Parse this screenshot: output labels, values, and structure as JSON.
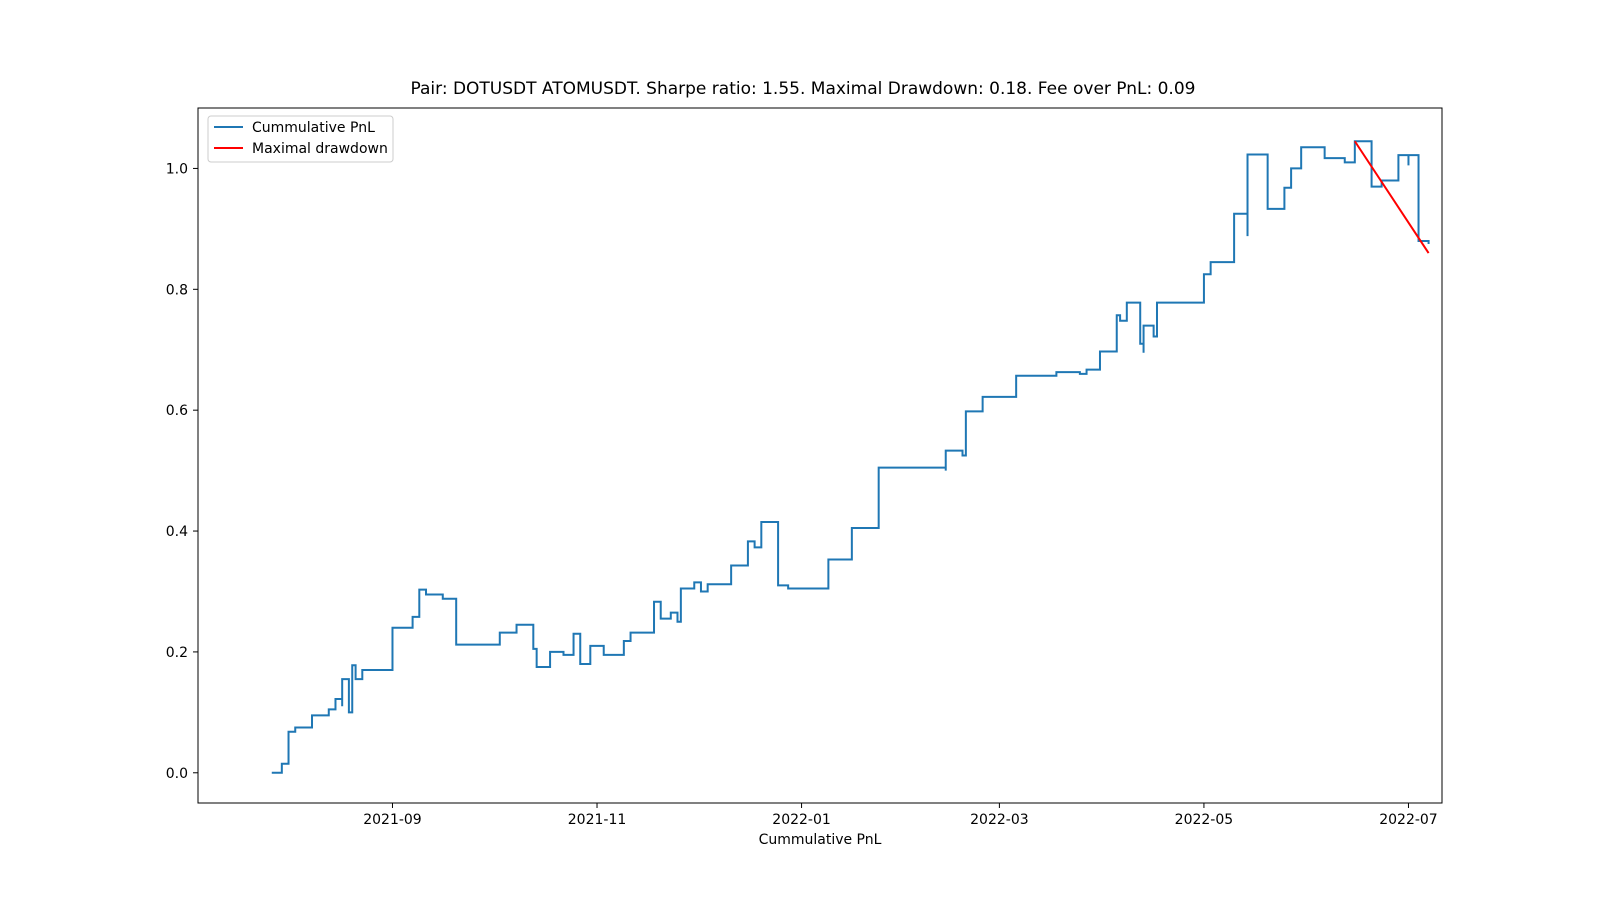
{
  "chart_data": {
    "type": "line",
    "title": "Pair: DOTUSDT ATOMUSDT. Sharpe ratio: 1.55. Maximal Drawdown: 0.18. Fee over PnL: 0.09",
    "xlabel": "Cummulative PnL",
    "ylabel": "",
    "xlim": [
      "2021-07-05",
      "2022-07-11"
    ],
    "ylim": [
      -0.05,
      1.1
    ],
    "x_ticks": [
      "2021-09",
      "2021-11",
      "2022-01",
      "2022-03",
      "2022-05",
      "2022-07"
    ],
    "y_ticks": [
      "0.0",
      "0.2",
      "0.4",
      "0.6",
      "0.8",
      "1.0"
    ],
    "grid": false,
    "legend_position": "top-left",
    "series": [
      {
        "name": "Cummulative PnL",
        "color": "#1f77b4",
        "step": true,
        "points": [
          [
            "2021-07-27",
            0.0
          ],
          [
            "2021-07-30",
            0.015
          ],
          [
            "2021-08-01",
            0.045
          ],
          [
            "2021-08-01",
            0.068
          ],
          [
            "2021-08-03",
            0.075
          ],
          [
            "2021-08-08",
            0.095
          ],
          [
            "2021-08-13",
            0.105
          ],
          [
            "2021-08-15",
            0.122
          ],
          [
            "2021-08-17",
            0.11
          ],
          [
            "2021-08-17",
            0.155
          ],
          [
            "2021-08-19",
            0.1
          ],
          [
            "2021-08-20",
            0.178
          ],
          [
            "2021-08-21",
            0.155
          ],
          [
            "2021-08-23",
            0.17
          ],
          [
            "2021-09-01",
            0.24
          ],
          [
            "2021-09-07",
            0.258
          ],
          [
            "2021-09-09",
            0.303
          ],
          [
            "2021-09-11",
            0.295
          ],
          [
            "2021-09-16",
            0.288
          ],
          [
            "2021-09-20",
            0.212
          ],
          [
            "2021-10-03",
            0.232
          ],
          [
            "2021-10-08",
            0.245
          ],
          [
            "2021-10-13",
            0.205
          ],
          [
            "2021-10-14",
            0.175
          ],
          [
            "2021-10-18",
            0.2
          ],
          [
            "2021-10-22",
            0.195
          ],
          [
            "2021-10-25",
            0.23
          ],
          [
            "2021-10-27",
            0.18
          ],
          [
            "2021-10-30",
            0.21
          ],
          [
            "2021-11-03",
            0.195
          ],
          [
            "2021-11-09",
            0.218
          ],
          [
            "2021-11-11",
            0.232
          ],
          [
            "2021-11-18",
            0.283
          ],
          [
            "2021-11-20",
            0.255
          ],
          [
            "2021-11-23",
            0.265
          ],
          [
            "2021-11-25",
            0.25
          ],
          [
            "2021-11-26",
            0.305
          ],
          [
            "2021-11-30",
            0.315
          ],
          [
            "2021-12-02",
            0.3
          ],
          [
            "2021-12-04",
            0.312
          ],
          [
            "2021-12-11",
            0.343
          ],
          [
            "2021-12-16",
            0.383
          ],
          [
            "2021-12-18",
            0.373
          ],
          [
            "2021-12-20",
            0.415
          ],
          [
            "2021-12-25",
            0.31
          ],
          [
            "2021-12-28",
            0.305
          ],
          [
            "2022-01-09",
            0.353
          ],
          [
            "2022-01-16",
            0.405
          ],
          [
            "2022-01-24",
            0.505
          ],
          [
            "2022-02-13",
            0.5
          ],
          [
            "2022-02-13",
            0.533
          ],
          [
            "2022-02-18",
            0.525
          ],
          [
            "2022-02-19",
            0.598
          ],
          [
            "2022-02-24",
            0.622
          ],
          [
            "2022-03-06",
            0.657
          ],
          [
            "2022-03-18",
            0.663
          ],
          [
            "2022-03-25",
            0.66
          ],
          [
            "2022-03-27",
            0.667
          ],
          [
            "2022-03-31",
            0.697
          ],
          [
            "2022-04-05",
            0.757
          ],
          [
            "2022-04-06",
            0.748
          ],
          [
            "2022-04-08",
            0.778
          ],
          [
            "2022-04-12",
            0.71
          ],
          [
            "2022-04-13",
            0.695
          ],
          [
            "2022-04-13",
            0.74
          ],
          [
            "2022-04-16",
            0.722
          ],
          [
            "2022-04-17",
            0.778
          ],
          [
            "2022-05-01",
            0.825
          ],
          [
            "2022-05-03",
            0.845
          ],
          [
            "2022-05-10",
            0.925
          ],
          [
            "2022-05-14",
            0.888
          ],
          [
            "2022-05-14",
            1.023
          ],
          [
            "2022-05-20",
            0.933
          ],
          [
            "2022-05-25",
            0.968
          ],
          [
            "2022-05-27",
            1.0
          ],
          [
            "2022-05-30",
            1.035
          ],
          [
            "2022-06-06",
            1.017
          ],
          [
            "2022-06-12",
            1.01
          ],
          [
            "2022-06-15",
            1.045
          ],
          [
            "2022-06-20",
            0.97
          ],
          [
            "2022-06-23",
            0.98
          ],
          [
            "2022-06-28",
            1.022
          ],
          [
            "2022-07-01",
            1.005
          ],
          [
            "2022-07-01",
            1.022
          ],
          [
            "2022-07-04",
            0.88
          ],
          [
            "2022-07-07",
            0.875
          ]
        ]
      },
      {
        "name": "Maximal drawdown",
        "color": "#ff0000",
        "step": false,
        "points": [
          [
            "2022-06-15",
            1.045
          ],
          [
            "2022-07-07",
            0.86
          ]
        ]
      }
    ]
  }
}
